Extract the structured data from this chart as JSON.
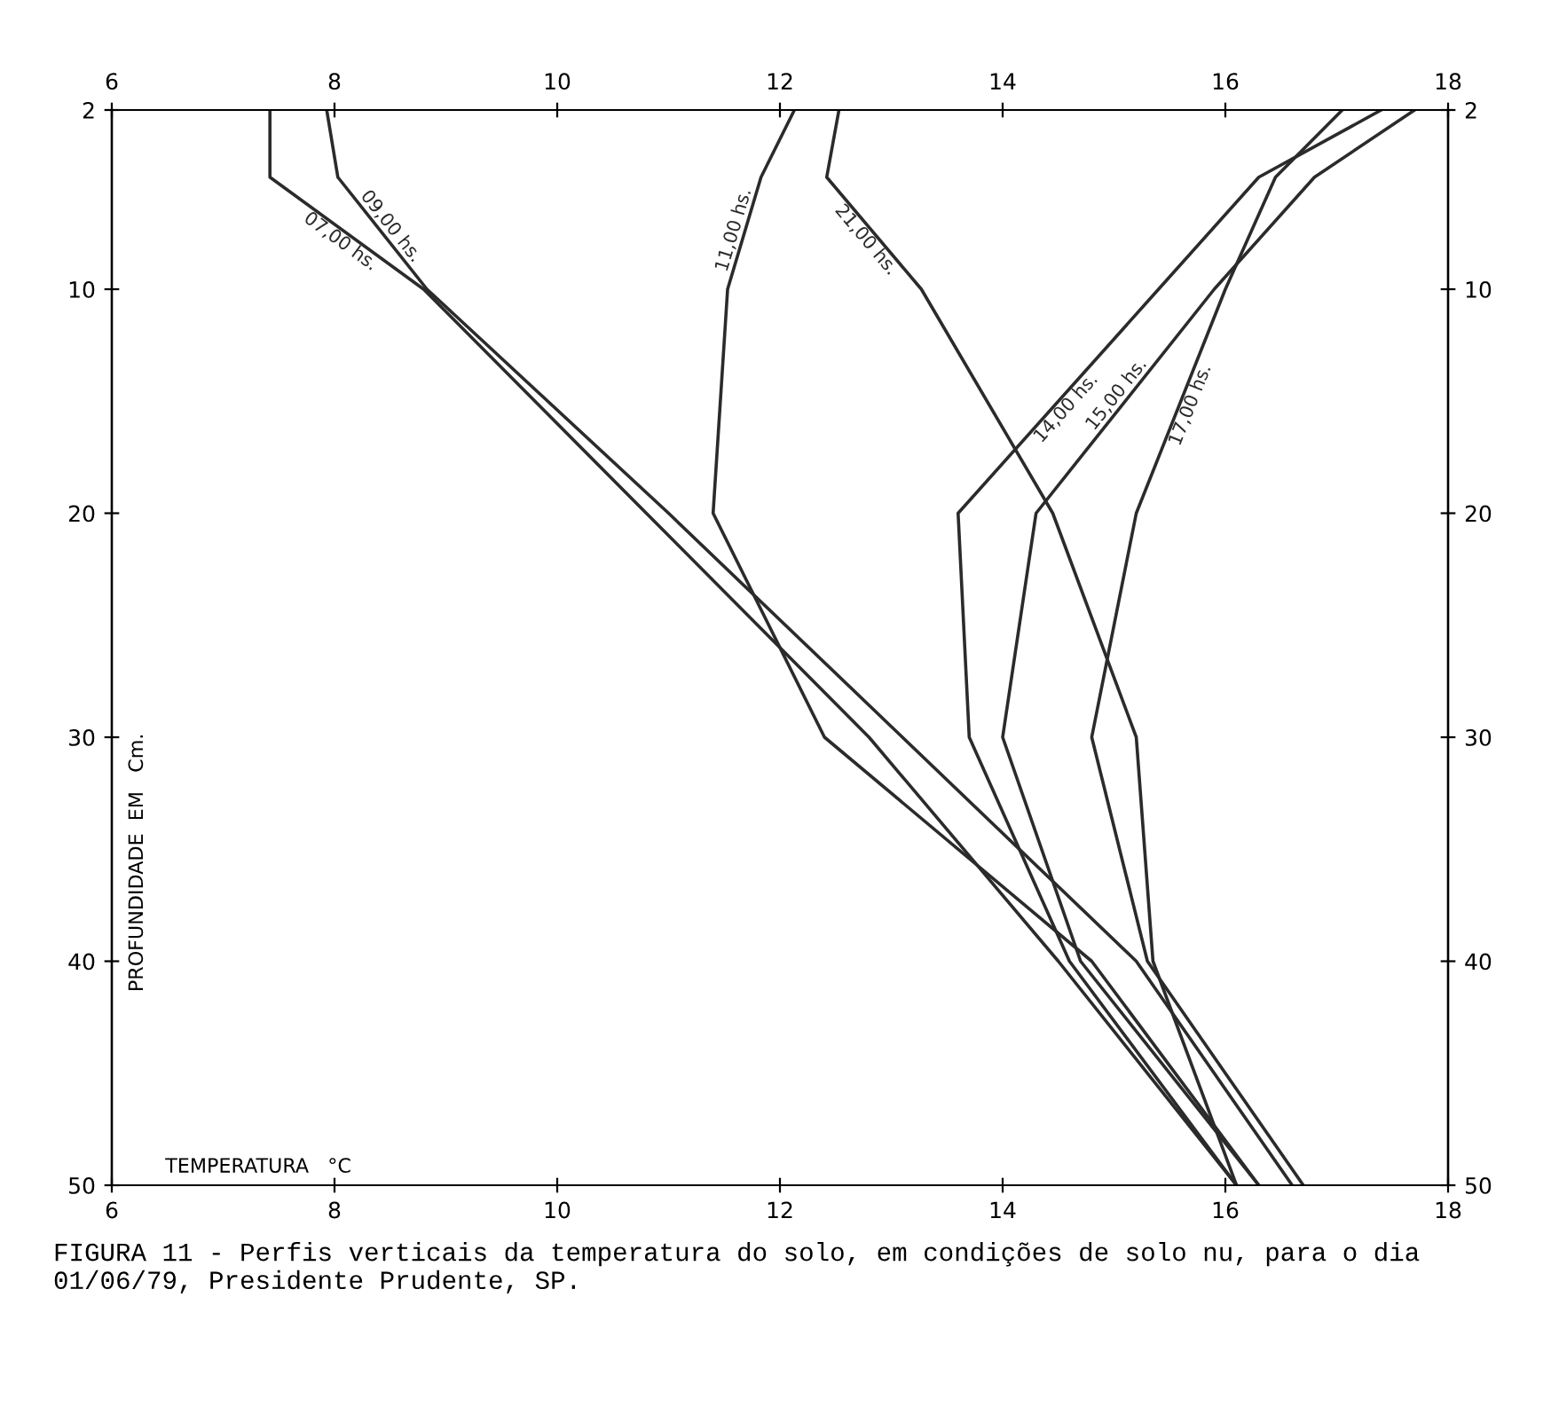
{
  "chart_data": {
    "type": "line",
    "xlabel": "TEMPERATURA   °C",
    "ylabel": "PROFUNDIDADE  EM   Cm.",
    "series": [
      {
        "name": "07,00 hs.",
        "color": "#2b2b2b",
        "x": [
          7.42,
          7.42,
          8.8,
          10.8,
          12.8,
          14.5,
          16.1
        ],
        "values": [
          2,
          5,
          10,
          20,
          30,
          40,
          50
        ]
      },
      {
        "name": "09,00 hs.",
        "color": "#2b2b2b",
        "x": [
          7.93,
          8.03,
          8.83,
          11.0,
          13.1,
          15.2,
          16.6
        ],
        "values": [
          2,
          5,
          10,
          20,
          30,
          40,
          50
        ]
      },
      {
        "name": "11,00 hs.",
        "color": "#2b2b2b",
        "x": [
          12.13,
          11.83,
          11.53,
          11.4,
          12.4,
          14.8,
          16.3
        ],
        "values": [
          2,
          5,
          10,
          20,
          30,
          40,
          50
        ]
      },
      {
        "name": "14,00 hs.",
        "color": "#2b2b2b",
        "x": [
          17.4,
          16.3,
          15.4,
          13.6,
          13.7,
          14.6,
          16.1
        ],
        "values": [
          2,
          5,
          10,
          20,
          30,
          40,
          50
        ]
      },
      {
        "name": "15,00 hs.",
        "color": "#2b2b2b",
        "x": [
          17.7,
          16.8,
          15.9,
          14.3,
          14.0,
          14.7,
          16.3
        ],
        "values": [
          2,
          5,
          10,
          20,
          30,
          40,
          50
        ]
      },
      {
        "name": "17,00 hs.",
        "color": "#2b2b2b",
        "x": [
          17.05,
          16.45,
          16.0,
          15.2,
          14.8,
          15.3,
          16.7
        ],
        "values": [
          2,
          5,
          10,
          20,
          30,
          40,
          50
        ]
      },
      {
        "name": "21,00 hs.",
        "color": "#2b2b2b",
        "x": [
          12.53,
          12.42,
          13.27,
          14.45,
          15.2,
          15.35,
          16.1
        ],
        "values": [
          2,
          5,
          10,
          20,
          30,
          40,
          50
        ]
      }
    ],
    "xlim": [
      6,
      18
    ],
    "xticks": [
      6,
      8,
      10,
      12,
      14,
      16,
      18
    ],
    "x2lim": [
      6,
      18
    ],
    "x2ticks": [
      6,
      8,
      10,
      12,
      14,
      16,
      18
    ],
    "ylim": [
      50,
      2
    ],
    "yticks": [
      2,
      10,
      20,
      30,
      40,
      50
    ],
    "y2lim": [
      50,
      2
    ],
    "y2ticks": [
      2,
      10,
      20,
      30,
      40,
      50
    ],
    "grid": false,
    "legend": false,
    "marker": "none",
    "line_style": "solid",
    "annotations": [
      "FIGURA 11 - Perfis verticais da temperatura do solo, em condições de solo nu, para o dia 01/06/79, Presidente Prudente, SP."
    ]
  }
}
